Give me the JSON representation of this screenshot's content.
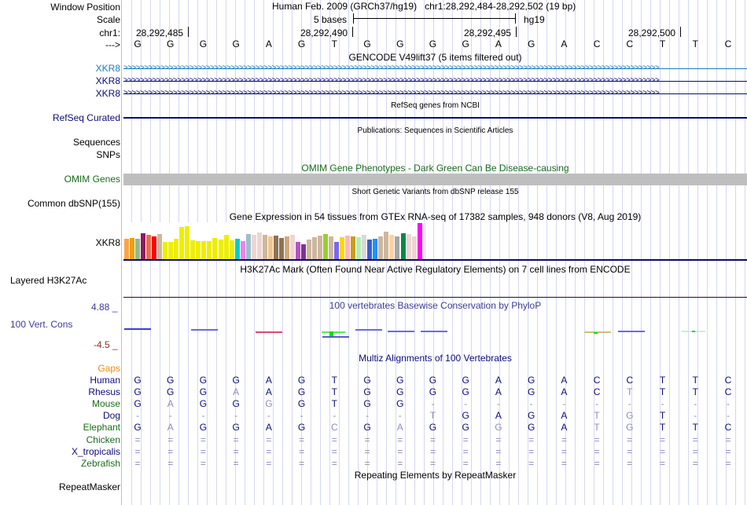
{
  "header": {
    "window_position_label": "Window Position",
    "scale_label": "Scale",
    "chrom_label": "chr1:",
    "strand_label": "--->",
    "assembly": "Human Feb. 2009 (GRCh37/hg19)",
    "position": "chr1:28,292,484-28,292,502 (19 bp)",
    "scale_text": "5 bases",
    "db": "hg19",
    "coords": [
      "28,292,485",
      "28,292,490",
      "28,292,495",
      "28,292,500"
    ],
    "sequence": [
      "G",
      "G",
      "G",
      "G",
      "A",
      "G",
      "T",
      "G",
      "G",
      "G",
      "G",
      "A",
      "G",
      "A",
      "C",
      "C",
      "T",
      "T",
      "C"
    ]
  },
  "tracks": {
    "gencode": {
      "title": "GENCODE V49lift37 (5 items filtered out)",
      "genes": [
        {
          "label": "XKR8",
          "color": "#1c7fb4"
        },
        {
          "label": "XKR8",
          "color": "#0c0c78"
        },
        {
          "label": "XKR8",
          "color": "#0c0c78"
        }
      ]
    },
    "refseq": {
      "title": "RefSeq genes from NCBI",
      "label": "RefSeq Curated",
      "color": "#0c0c78"
    },
    "publications": {
      "title": "Publications: Sequences in Scientific Articles",
      "labels": [
        "Sequences",
        "SNPs"
      ]
    },
    "omim": {
      "title": "OMIM Gene Phenotypes - Dark Green Can Be Disease-causing",
      "label": "OMIM Genes",
      "color": "#1a6b1a",
      "bar_color": "#bebebe"
    },
    "dbsnp": {
      "title": "Short Genetic Variants from dbSNP release 155",
      "label": "Common dbSNP(155)"
    },
    "gtex": {
      "title": "Gene Expression in 54 tissues from GTEx RNA-seq of 17382 samples, 948 donors (V8, Aug 2019)",
      "label": "XKR8",
      "bars": [
        {
          "v": 26,
          "c": "#fea346"
        },
        {
          "v": 27,
          "c": "#ef9f0c"
        },
        {
          "v": 26,
          "c": "#8fbc8f"
        },
        {
          "v": 33,
          "c": "#8b1c62"
        },
        {
          "v": 31,
          "c": "#ee6a50"
        },
        {
          "v": 29,
          "c": "#ff0000"
        },
        {
          "v": 32,
          "c": "#cdb79e"
        },
        {
          "v": 22,
          "c": "#eeee00"
        },
        {
          "v": 22,
          "c": "#eeee00"
        },
        {
          "v": 26,
          "c": "#eeee00"
        },
        {
          "v": 41,
          "c": "#eeee00"
        },
        {
          "v": 42,
          "c": "#eeee00"
        },
        {
          "v": 24,
          "c": "#eeee00"
        },
        {
          "v": 23,
          "c": "#eeee00"
        },
        {
          "v": 23,
          "c": "#eeee00"
        },
        {
          "v": 23,
          "c": "#eeee00"
        },
        {
          "v": 27,
          "c": "#eeee00"
        },
        {
          "v": 25,
          "c": "#eeee00"
        },
        {
          "v": 31,
          "c": "#eeee00"
        },
        {
          "v": 24,
          "c": "#eeee00"
        },
        {
          "v": 26,
          "c": "#00cdcd"
        },
        {
          "v": 23,
          "c": "#ee82ee"
        },
        {
          "v": 32,
          "c": "#9ac0cd"
        },
        {
          "v": 31,
          "c": "#eed5d2"
        },
        {
          "v": 34,
          "c": "#eed5d2"
        },
        {
          "v": 31,
          "c": "#cdb79e"
        },
        {
          "v": 29,
          "c": "#eec591"
        },
        {
          "v": 30,
          "c": "#8b7355"
        },
        {
          "v": 27,
          "c": "#8b7355"
        },
        {
          "v": 29,
          "c": "#cdaa7d"
        },
        {
          "v": 31,
          "c": "#eed5d2"
        },
        {
          "v": 22,
          "c": "#b452cd"
        },
        {
          "v": 19,
          "c": "#7a378b"
        },
        {
          "v": 25,
          "c": "#cdb79e"
        },
        {
          "v": 28,
          "c": "#cdb79e"
        },
        {
          "v": 30,
          "c": "#cdb79e"
        },
        {
          "v": 32,
          "c": "#9acd32"
        },
        {
          "v": 29,
          "c": "#cdb79e"
        },
        {
          "v": 22,
          "c": "#7b68ee"
        },
        {
          "v": 28,
          "c": "#ffd700"
        },
        {
          "v": 30,
          "c": "#ffb6c1"
        },
        {
          "v": 29,
          "c": "#cd9b1d"
        },
        {
          "v": 28,
          "c": "#b4eeb4"
        },
        {
          "v": 31,
          "c": "#d9d9d9"
        },
        {
          "v": 25,
          "c": "#3a5fcd"
        },
        {
          "v": 26,
          "c": "#1e90ff"
        },
        {
          "v": 29,
          "c": "#cdb79e"
        },
        {
          "v": 35,
          "c": "#cdb79e"
        },
        {
          "v": 31,
          "c": "#ffd39b"
        },
        {
          "v": 29,
          "c": "#a6a6a6"
        },
        {
          "v": 33,
          "c": "#008b45"
        },
        {
          "v": 32,
          "c": "#eed5d2"
        },
        {
          "v": 29,
          "c": "#eed5d2"
        },
        {
          "v": 46,
          "c": "#ff00ff"
        }
      ]
    },
    "h3k27ac": {
      "title": "H3K27Ac Mark (Often Found Near Active Regulatory Elements) on 7 cell lines from ENCODE",
      "label": "Layered H3K27Ac"
    },
    "phylop": {
      "title": "100 vertebrates Basewise Conservation by PhyloP",
      "label": "100 Vert. Cons",
      "max_label": "4.88 _",
      "min_label": "-4.5 _",
      "color": "#3c3c96",
      "min_color": "#962d2d"
    },
    "multiz": {
      "title": "Multiz Alignments of 100 Vertebrates",
      "gaps_label": "Gaps",
      "species": [
        {
          "name": "Human",
          "color": "#0c0c78",
          "bases": [
            "G",
            "G",
            "G",
            "G",
            "A",
            "G",
            "T",
            "G",
            "G",
            "G",
            "G",
            "A",
            "G",
            "A",
            "C",
            "C",
            "T",
            "T",
            "C"
          ],
          "faded": []
        },
        {
          "name": "Rhesus",
          "color": "#0c0c78",
          "bases": [
            "G",
            "G",
            "G",
            "A",
            "A",
            "G",
            "T",
            "G",
            "G",
            "G",
            "G",
            "A",
            "G",
            "A",
            "C",
            "T",
            "T",
            "T",
            "C"
          ],
          "faded": [
            3,
            15
          ]
        },
        {
          "name": "Mouse",
          "color": "#1a6b1a",
          "bases": [
            "G",
            "A",
            "G",
            "G",
            "G",
            "G",
            "T",
            "G",
            "G",
            "-",
            "-",
            "-",
            "-",
            "-",
            "-",
            "-",
            "-",
            "-",
            "-"
          ],
          "faded": [
            1,
            4
          ]
        },
        {
          "name": "Dog",
          "color": "#0c0c78",
          "bases": [
            "-",
            "-",
            "-",
            "-",
            "-",
            "-",
            "-",
            "-",
            "-",
            "T",
            "G",
            "A",
            "G",
            "A",
            "T",
            "G",
            "T",
            "-",
            "-"
          ],
          "faded": [
            9,
            14,
            15
          ]
        },
        {
          "name": "Elephant",
          "color": "#1a6b1a",
          "bases": [
            "G",
            "A",
            "G",
            "G",
            "A",
            "G",
            "C",
            "G",
            "A",
            "G",
            "G",
            "G",
            "G",
            "A",
            "T",
            "G",
            "T",
            "T",
            "C"
          ],
          "faded": [
            1,
            6,
            8,
            11,
            14,
            15
          ]
        },
        {
          "name": "Chicken",
          "color": "#1a6b1a",
          "bases": [
            "=",
            "=",
            "=",
            "=",
            "=",
            "=",
            "=",
            "=",
            "=",
            "=",
            "=",
            "=",
            "=",
            "=",
            "=",
            "=",
            "=",
            "=",
            "="
          ],
          "faded": []
        },
        {
          "name": "X_tropicalis",
          "color": "#0c0c78",
          "bases": [
            "=",
            "=",
            "=",
            "=",
            "=",
            "=",
            "=",
            "=",
            "=",
            "=",
            "=",
            "=",
            "=",
            "=",
            "=",
            "=",
            "=",
            "=",
            "="
          ],
          "faded": []
        },
        {
          "name": "Zebrafish",
          "color": "#1a6b1a",
          "bases": [
            "=",
            "=",
            "=",
            "=",
            "=",
            "=",
            "=",
            "=",
            "=",
            "=",
            "=",
            "=",
            "=",
            "=",
            "=",
            "=",
            "=",
            "=",
            "="
          ],
          "faded": []
        }
      ]
    },
    "repeatmasker": {
      "title": "Repeating Elements by RepeatMasker",
      "label": "RepeatMasker"
    }
  }
}
